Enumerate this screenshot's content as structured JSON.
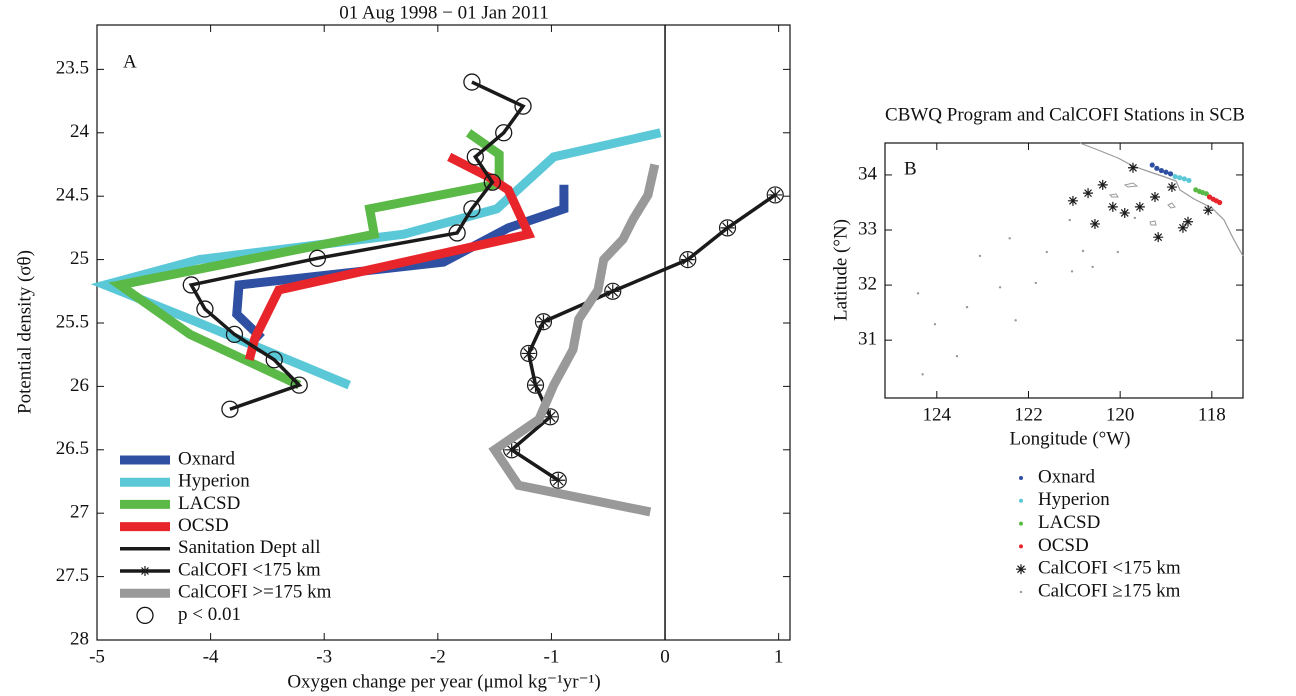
{
  "chart_data": [
    {
      "type": "line",
      "title": "01 Aug 1998 − 01 Jan 2011",
      "panel_label": "A",
      "x_label": "Oxygen change per year (μmol kg⁻¹yr⁻¹)",
      "y_label": "Potential density (σθ)",
      "xlim": [
        -5,
        1.1
      ],
      "ylim": [
        23.15,
        28
      ],
      "y_inverted": true,
      "xticks": [
        -5,
        -4,
        -3,
        -2,
        -1,
        0,
        1
      ],
      "yticks": [
        23.5,
        24,
        24.5,
        25,
        25.5,
        26,
        26.5,
        27,
        27.5,
        28
      ],
      "zero_line": true,
      "significance_label": "p < 0.01",
      "series": [
        {
          "name": "Oxnard",
          "color": "#2f4fa3",
          "width": 9,
          "marker": "none",
          "values": [
            -0.89,
            -0.89,
            -1.38,
            -1.95,
            -3.75,
            -3.77,
            -3.55
          ],
          "density": [
            24.41,
            24.6,
            24.75,
            25.02,
            25.2,
            25.43,
            25.62
          ]
        },
        {
          "name": "Hyperion",
          "color": "#5bc8d8",
          "width": 9,
          "marker": "none",
          "values": [
            -0.04,
            -0.98,
            -1.48,
            -2.3,
            -4.1,
            -4.93,
            -4.18,
            -2.78
          ],
          "density": [
            24.0,
            24.19,
            24.6,
            24.8,
            25.0,
            25.2,
            25.47,
            25.99
          ]
        },
        {
          "name": "LACSD",
          "color": "#5bb947",
          "width": 9,
          "marker": "none",
          "values": [
            -1.73,
            -1.46,
            -1.46,
            -2.6,
            -2.56,
            -4.8,
            -4.18,
            -3.22
          ],
          "density": [
            24.0,
            24.17,
            24.4,
            24.6,
            24.8,
            25.2,
            25.59,
            25.99
          ]
        },
        {
          "name": "OCSD",
          "color": "#e8252a",
          "width": 9,
          "marker": "none",
          "values": [
            -1.9,
            -1.55,
            -1.38,
            -1.2,
            -3.4,
            -3.61,
            -3.66
          ],
          "density": [
            24.19,
            24.35,
            24.45,
            24.8,
            25.24,
            25.62,
            25.79
          ]
        },
        {
          "name": "Sanitation Dept all",
          "color": "#1a1a1a",
          "width": 3.5,
          "marker": "circle",
          "values": [
            -1.7,
            -1.25,
            -1.42,
            -1.67,
            -1.52,
            -1.7,
            -1.83,
            -3.06,
            -4.17,
            -4.05,
            -3.79,
            -3.44,
            -3.22,
            -3.83
          ],
          "density": [
            23.6,
            23.79,
            24.0,
            24.19,
            24.39,
            24.6,
            24.79,
            24.99,
            25.2,
            25.39,
            25.59,
            25.79,
            25.99,
            26.18
          ]
        },
        {
          "name": "CalCOFI <175 km",
          "color": "#1a1a1a",
          "width": 3.5,
          "marker": "circled-star",
          "values": [
            0.97,
            0.55,
            0.2,
            -0.46,
            -1.07,
            -1.2,
            -1.14,
            -1.01,
            -1.35,
            -0.94
          ],
          "density": [
            24.49,
            24.75,
            25.0,
            25.25,
            25.49,
            25.74,
            25.99,
            26.24,
            26.5,
            26.74
          ]
        },
        {
          "name": "CalCOFI >=175 km",
          "color": "#999999",
          "width": 9,
          "marker": "none",
          "values": [
            -0.09,
            -0.15,
            -0.28,
            -0.37,
            -0.54,
            -0.59,
            -0.76,
            -0.81,
            -0.98,
            -1.11,
            -1.5,
            -1.29,
            -0.13
          ],
          "density": [
            24.25,
            24.49,
            24.68,
            24.84,
            25.0,
            25.24,
            25.47,
            25.71,
            25.99,
            26.26,
            26.5,
            26.78,
            26.99
          ]
        }
      ]
    },
    {
      "type": "scatter",
      "title": "CBWQ Program and CalCOFI Stations in SCB",
      "panel_label": "B",
      "x_label": "Longitude (°W)",
      "y_label": "Latitude (°N)",
      "xlim": [
        125.13,
        117.32
      ],
      "ylim": [
        29.95,
        34.58
      ],
      "xticks": [
        124,
        122,
        120,
        118
      ],
      "yticks": [
        31,
        32,
        33,
        34
      ],
      "series": [
        {
          "name": "Oxnard",
          "color": "#2f4fa3",
          "marker": "dot",
          "x": [
            119.3,
            119.2,
            119.1,
            119.0,
            118.9
          ],
          "y": [
            34.18,
            34.12,
            34.08,
            34.05,
            34.02
          ]
        },
        {
          "name": "Hyperion",
          "color": "#5bc8d8",
          "marker": "dot",
          "x": [
            118.8,
            118.7,
            118.6,
            118.5
          ],
          "y": [
            33.97,
            33.95,
            33.93,
            33.9
          ]
        },
        {
          "name": "LACSD",
          "color": "#5bb947",
          "marker": "dot",
          "x": [
            118.35,
            118.27,
            118.2,
            118.12
          ],
          "y": [
            33.73,
            33.7,
            33.68,
            33.66
          ]
        },
        {
          "name": "OCSD",
          "color": "#e8252a",
          "marker": "dot",
          "x": [
            118.05,
            117.97,
            117.9,
            117.83
          ],
          "y": [
            33.6,
            33.56,
            33.53,
            33.5
          ]
        },
        {
          "name": "CalCOFI <175 km",
          "color": "#1a1a1a",
          "marker": "star",
          "x": [
            119.72,
            118.87,
            120.38,
            120.7,
            121.03,
            120.16,
            119.57,
            119.24,
            118.08,
            120.55,
            119.9,
            118.52,
            118.63,
            119.17
          ],
          "y": [
            34.13,
            33.78,
            33.82,
            33.67,
            33.53,
            33.42,
            33.42,
            33.6,
            33.36,
            33.11,
            33.31,
            33.15,
            33.04,
            32.87
          ]
        },
        {
          "name": "CalCOFI ≥175 km",
          "color": "#999999",
          "marker": "small",
          "x": [
            121.1,
            122.41,
            121.6,
            123.06,
            120.05,
            119.68,
            122.62,
            121.84,
            121.05,
            120.6,
            124.41,
            123.34,
            122.28,
            124.04,
            123.56,
            124.31,
            120.81
          ],
          "y": [
            33.18,
            32.85,
            32.6,
            32.53,
            32.6,
            33.22,
            31.96,
            32.04,
            32.25,
            32.33,
            31.85,
            31.6,
            31.36,
            31.29,
            30.71,
            30.38,
            32.62
          ]
        }
      ]
    }
  ]
}
